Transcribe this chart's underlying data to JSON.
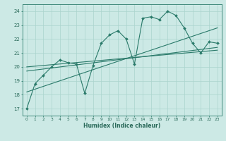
{
  "title": "",
  "xlabel": "Humidex (Indice chaleur)",
  "bg_color": "#cce9e5",
  "grid_color": "#aad4ce",
  "line_color": "#2a7a6a",
  "xlim": [
    -0.5,
    23.5
  ],
  "ylim": [
    16.5,
    24.5
  ],
  "xticks": [
    0,
    1,
    2,
    3,
    4,
    5,
    6,
    7,
    8,
    9,
    10,
    11,
    12,
    13,
    14,
    15,
    16,
    17,
    18,
    19,
    20,
    21,
    22,
    23
  ],
  "yticks": [
    17,
    18,
    19,
    20,
    21,
    22,
    23,
    24
  ],
  "series1_x": [
    0,
    1,
    2,
    3,
    4,
    5,
    6,
    7,
    8,
    9,
    10,
    11,
    12,
    13,
    14,
    15,
    16,
    17,
    18,
    19,
    20,
    21,
    22,
    23
  ],
  "series1_y": [
    17.0,
    18.8,
    19.4,
    20.0,
    20.5,
    20.3,
    20.2,
    18.1,
    20.1,
    21.7,
    22.3,
    22.6,
    22.0,
    20.2,
    23.5,
    23.6,
    23.4,
    24.0,
    23.7,
    22.8,
    21.7,
    21.0,
    21.8,
    21.7
  ],
  "series2_x": [
    0,
    23
  ],
  "series2_y": [
    18.2,
    22.8
  ],
  "series3_x": [
    0,
    23
  ],
  "series3_y": [
    19.7,
    21.4
  ],
  "series4_x": [
    0,
    23
  ],
  "series4_y": [
    20.0,
    21.2
  ]
}
